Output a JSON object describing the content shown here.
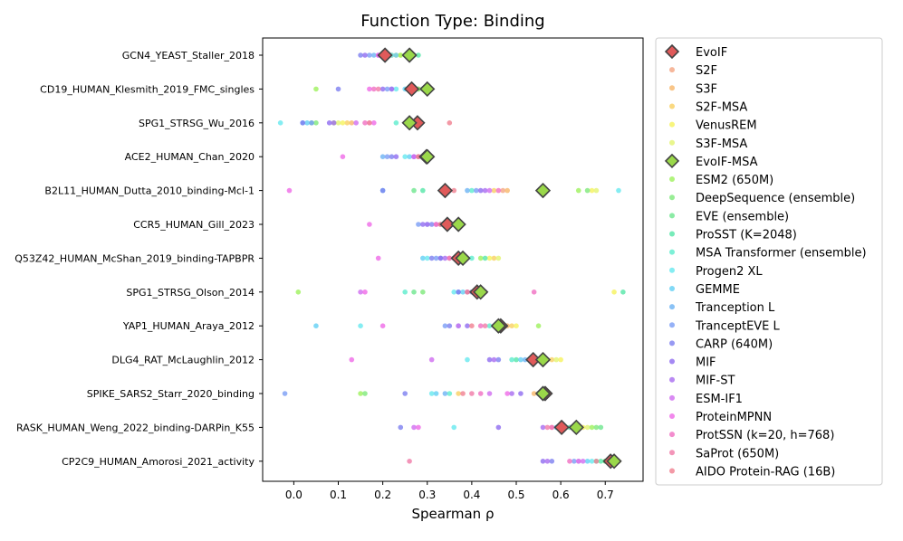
{
  "chart_data": {
    "type": "scatter",
    "title": "Function Type: Binding",
    "xlabel": "Spearman ρ",
    "ylabel": "",
    "xlim": [
      -0.07,
      0.785
    ],
    "xticks": [
      0.0,
      0.1,
      0.2,
      0.3,
      0.4,
      0.5,
      0.6,
      0.7
    ],
    "xtick_labels": [
      "0.0",
      "0.1",
      "0.2",
      "0.3",
      "0.4",
      "0.5",
      "0.6",
      "0.7"
    ],
    "grid": false,
    "legend_position": "outside-right",
    "categories": [
      "GCN4_YEAST_Staller_2018",
      "CD19_HUMAN_Klesmith_2019_FMC_singles",
      "SPG1_STRSG_Wu_2016",
      "ACE2_HUMAN_Chan_2020",
      "B2L11_HUMAN_Dutta_2010_binding-Mcl-1",
      "CCR5_HUMAN_Gill_2023",
      "Q53Z42_HUMAN_McShan_2019_binding-TAPBPR",
      "SPG1_STRSG_Olson_2014",
      "YAP1_HUMAN_Araya_2012",
      "DLG4_RAT_McLaughlin_2012",
      "SPIKE_SARS2_Starr_2020_binding",
      "RASK_HUMAN_Weng_2022_binding-DARPin_K55",
      "CP2C9_HUMAN_Amorosi_2021_activity"
    ],
    "series": [
      {
        "name": "EvoIF",
        "color": "#e05a5a",
        "marker": "diamond",
        "values": [
          0.205,
          0.265,
          0.278,
          0.298,
          0.34,
          0.345,
          0.37,
          0.412,
          0.465,
          0.538,
          0.565,
          0.602,
          0.712
        ]
      },
      {
        "name": "S2F",
        "color": "#f4a582",
        "marker": "circle",
        "values": [
          0.21,
          0.26,
          0.17,
          0.31,
          0.47,
          0.35,
          0.35,
          0.4,
          0.47,
          0.53,
          0.55,
          0.58,
          0.7
        ]
      },
      {
        "name": "S3F",
        "color": "#f7b76a",
        "marker": "circle",
        "values": [
          0.22,
          0.27,
          0.13,
          0.3,
          0.48,
          0.34,
          0.37,
          0.41,
          0.48,
          0.55,
          0.54,
          0.6,
          0.71
        ]
      },
      {
        "name": "S2F-MSA",
        "color": "#f9d062",
        "marker": "circle",
        "values": [
          0.23,
          0.28,
          0.12,
          0.3,
          0.45,
          0.36,
          0.45,
          0.42,
          0.49,
          0.58,
          0.37,
          0.62,
          0.72
        ]
      },
      {
        "name": "VenusREM",
        "color": "#f6f25c",
        "marker": "circle",
        "values": [
          0.24,
          0.29,
          0.11,
          0.29,
          0.67,
          0.35,
          0.44,
          0.72,
          0.5,
          0.6,
          0.55,
          0.65,
          0.72
        ]
      },
      {
        "name": "S3F-MSA",
        "color": "#e3f470",
        "marker": "circle",
        "values": [
          0.25,
          0.3,
          0.1,
          0.3,
          0.68,
          0.36,
          0.46,
          0.43,
          0.47,
          0.59,
          0.56,
          0.66,
          0.73
        ]
      },
      {
        "name": "EvoIF-MSA",
        "color": "#9ad84a",
        "marker": "diamond",
        "values": [
          0.26,
          0.3,
          0.26,
          0.3,
          0.56,
          0.37,
          0.38,
          0.42,
          0.46,
          0.56,
          0.56,
          0.635,
          0.72
        ]
      },
      {
        "name": "ESM2 (650M)",
        "color": "#9df15c",
        "marker": "circle",
        "values": [
          0.24,
          0.05,
          0.09,
          0.3,
          0.64,
          0.36,
          0.42,
          0.01,
          0.55,
          0.57,
          0.15,
          0.67,
          0.71
        ]
      },
      {
        "name": "DeepSequence (ensemble)",
        "color": "#7ee87a",
        "marker": "circle",
        "values": [
          0.26,
          0.28,
          0.05,
          0.29,
          0.66,
          0.37,
          0.37,
          0.29,
          0.46,
          0.56,
          0.16,
          0.68,
          0.7
        ]
      },
      {
        "name": "EVE (ensemble)",
        "color": "#6ee68e",
        "marker": "circle",
        "values": [
          0.27,
          0.29,
          0.04,
          0.29,
          0.27,
          0.37,
          0.38,
          0.27,
          0.47,
          0.56,
          0.57,
          0.69,
          0.7
        ]
      },
      {
        "name": "ProSST (K=2048)",
        "color": "#55e6a8",
        "marker": "circle",
        "values": [
          0.28,
          0.3,
          0.26,
          0.3,
          0.29,
          0.35,
          0.43,
          0.74,
          0.46,
          0.5,
          0.55,
          0.64,
          0.69
        ]
      },
      {
        "name": "MSA Transformer (ensemble)",
        "color": "#5ceccd",
        "marker": "circle",
        "values": [
          0.25,
          0.29,
          0.23,
          0.28,
          0.4,
          0.36,
          0.4,
          0.25,
          0.44,
          0.49,
          0.35,
          0.62,
          0.68
        ]
      },
      {
        "name": "Progen2 XL",
        "color": "#66e9ef",
        "marker": "circle",
        "values": [
          0.22,
          0.23,
          -0.03,
          0.25,
          0.73,
          0.33,
          0.3,
          0.36,
          0.15,
          0.39,
          0.31,
          0.36,
          0.67
        ]
      },
      {
        "name": "GEMME",
        "color": "#62cff4",
        "marker": "circle",
        "values": [
          0.23,
          0.25,
          0.03,
          0.26,
          0.2,
          0.34,
          0.29,
          0.38,
          0.05,
          0.51,
          0.32,
          0.59,
          0.66
        ]
      },
      {
        "name": "Tranception L",
        "color": "#6db3f4",
        "marker": "circle",
        "values": [
          0.18,
          0.22,
          0.02,
          0.2,
          0.39,
          0.3,
          0.33,
          0.37,
          0.37,
          0.52,
          0.34,
          0.61,
          0.64
        ]
      },
      {
        "name": "TranceptEVE L",
        "color": "#7b9df5",
        "marker": "circle",
        "values": [
          0.17,
          0.21,
          0.04,
          0.21,
          0.41,
          0.28,
          0.32,
          0.4,
          0.34,
          0.55,
          -0.02,
          0.63,
          0.63
        ]
      },
      {
        "name": "CARP (640M)",
        "color": "#7d7ff0",
        "marker": "circle",
        "values": [
          0.15,
          0.1,
          0.02,
          0.22,
          0.2,
          0.31,
          0.31,
          0.37,
          0.35,
          0.46,
          0.25,
          0.24,
          0.58
        ]
      },
      {
        "name": "MIF",
        "color": "#8e6cf0",
        "marker": "circle",
        "values": [
          0.16,
          0.2,
          0.08,
          0.23,
          0.42,
          0.29,
          0.33,
          0.43,
          0.39,
          0.44,
          0.51,
          0.46,
          0.56
        ]
      },
      {
        "name": "MIF-ST",
        "color": "#a86bf0",
        "marker": "circle",
        "values": [
          0.19,
          0.22,
          0.09,
          0.27,
          0.43,
          0.3,
          0.34,
          0.39,
          0.45,
          0.45,
          0.49,
          0.56,
          0.57
        ]
      },
      {
        "name": "ESM-IF1",
        "color": "#cf6df0",
        "marker": "circle",
        "values": [
          0.2,
          0.26,
          0.14,
          0.27,
          0.44,
          0.32,
          0.36,
          0.15,
          0.37,
          0.31,
          0.44,
          0.27,
          0.65
        ]
      },
      {
        "name": "ProteinMPNN",
        "color": "#ef6ae7",
        "marker": "circle",
        "values": [
          0.19,
          0.17,
          0.18,
          0.11,
          -0.01,
          0.17,
          0.19,
          0.16,
          0.2,
          0.13,
          0.48,
          0.28,
          0.64
        ]
      },
      {
        "name": "ProtSSN (k=20, h=768)",
        "color": "#f06fc2",
        "marker": "circle",
        "values": [
          0.21,
          0.18,
          0.16,
          0.28,
          0.46,
          0.32,
          0.35,
          0.54,
          0.42,
          0.53,
          0.42,
          0.58,
          0.62
        ]
      },
      {
        "name": "SaProt (650M)",
        "color": "#f07aa8",
        "marker": "circle",
        "values": [
          0.21,
          0.19,
          0.17,
          0.29,
          0.35,
          0.33,
          0.36,
          0.43,
          0.43,
          0.54,
          0.4,
          0.57,
          0.26
        ]
      },
      {
        "name": "AIDO Protein-RAG (16B)",
        "color": "#f08090",
        "marker": "circle",
        "values": [
          0.2,
          0.27,
          0.35,
          0.28,
          0.36,
          0.33,
          0.37,
          0.39,
          0.4,
          0.54,
          0.38,
          0.6,
          0.68
        ]
      }
    ]
  }
}
